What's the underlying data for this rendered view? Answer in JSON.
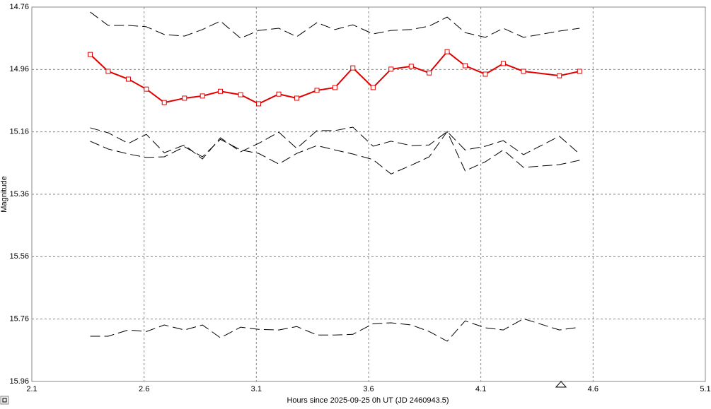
{
  "chart_data": {
    "type": "line",
    "x_label": "Hours since 2025-09-25 0h UT (JD 2460943.5)",
    "y_label": "Magnitude",
    "xlim": [
      2.1,
      5.1
    ],
    "xticks": [
      2.1,
      2.6,
      3.1,
      3.6,
      4.1,
      4.6,
      5.1
    ],
    "ylim": [
      14.76,
      15.96
    ],
    "yticks": [
      14.76,
      14.96,
      15.16,
      15.36,
      15.56,
      15.76,
      15.96
    ],
    "y_inverted": true,
    "grid": true,
    "x": [
      2.36,
      2.44,
      2.53,
      2.61,
      2.69,
      2.78,
      2.86,
      2.94,
      3.03,
      3.11,
      3.2,
      3.28,
      3.37,
      3.45,
      3.53,
      3.62,
      3.7,
      3.79,
      3.87,
      3.95,
      4.03,
      4.12,
      4.2,
      4.29,
      4.45,
      4.54
    ],
    "series": [
      {
        "color": "#e00000",
        "marker": "square",
        "dashed": false,
        "values": [
          14.912,
          14.966,
          14.991,
          15.023,
          15.066,
          15.052,
          15.045,
          15.03,
          15.041,
          15.07,
          15.039,
          15.052,
          15.027,
          15.018,
          14.955,
          15.018,
          14.959,
          14.95,
          14.971,
          14.903,
          14.948,
          14.975,
          14.941,
          14.966,
          14.98,
          14.966
        ]
      },
      {
        "color": "#000000",
        "dashed": true,
        "values": [
          14.776,
          14.819,
          14.819,
          14.823,
          14.848,
          14.853,
          14.832,
          14.805,
          14.86,
          14.835,
          14.828,
          14.855,
          14.81,
          14.832,
          14.817,
          14.846,
          14.835,
          14.832,
          14.821,
          14.792,
          14.842,
          14.857,
          14.828,
          14.857,
          14.837,
          14.828
        ]
      },
      {
        "color": "#000000",
        "dashed": true,
        "values": [
          15.147,
          15.163,
          15.197,
          15.168,
          15.227,
          15.202,
          15.247,
          15.179,
          15.224,
          15.197,
          15.161,
          15.213,
          15.156,
          15.156,
          15.145,
          15.206,
          15.19,
          15.204,
          15.202,
          15.159,
          15.218,
          15.206,
          15.188,
          15.233,
          15.174,
          15.231
        ]
      },
      {
        "color": "#000000",
        "dashed": true,
        "values": [
          15.19,
          15.215,
          15.231,
          15.242,
          15.24,
          15.208,
          15.24,
          15.184,
          15.218,
          15.229,
          15.263,
          15.229,
          15.204,
          15.218,
          15.231,
          15.249,
          15.295,
          15.267,
          15.24,
          15.159,
          15.285,
          15.256,
          15.218,
          15.274,
          15.265,
          15.251
        ]
      },
      {
        "color": "#000000",
        "dashed": true,
        "values": [
          15.815,
          15.815,
          15.795,
          15.8,
          15.779,
          15.795,
          15.779,
          15.82,
          15.786,
          15.793,
          15.795,
          15.784,
          15.811,
          15.811,
          15.809,
          15.775,
          15.772,
          15.779,
          15.8,
          15.831,
          15.766,
          15.788,
          15.795,
          15.759,
          15.795,
          15.786
        ]
      }
    ]
  }
}
